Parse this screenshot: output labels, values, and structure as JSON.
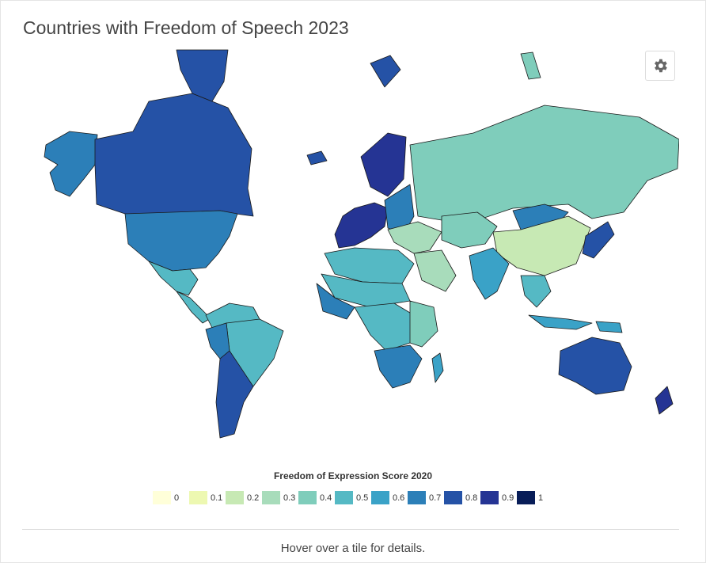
{
  "title": "Countries with Freedom of Speech 2023",
  "settings_icon": "gear-icon",
  "legend": {
    "title": "Freedom of Expression Score 2020",
    "items": [
      {
        "label": "0",
        "color": "#ffffd9"
      },
      {
        "label": "0.1",
        "color": "#edf8b1"
      },
      {
        "label": "0.2",
        "color": "#c7e9b4"
      },
      {
        "label": "0.3",
        "color": "#a8dcbb"
      },
      {
        "label": "0.4",
        "color": "#7fcdbb"
      },
      {
        "label": "0.5",
        "color": "#55b9c4"
      },
      {
        "label": "0.6",
        "color": "#3aa2c7"
      },
      {
        "label": "0.7",
        "color": "#2c7fb8"
      },
      {
        "label": "0.8",
        "color": "#2552a6"
      },
      {
        "label": "0.9",
        "color": "#253494"
      },
      {
        "label": "1",
        "color": "#081d58"
      }
    ]
  },
  "map_regions": [
    {
      "name": "Alaska",
      "score": 0.7
    },
    {
      "name": "Canada",
      "score": 0.8
    },
    {
      "name": "United States",
      "score": 0.7
    },
    {
      "name": "Mexico",
      "score": 0.5
    },
    {
      "name": "Central America",
      "score": 0.5
    },
    {
      "name": "South America North",
      "score": 0.5
    },
    {
      "name": "Brazil",
      "score": 0.5
    },
    {
      "name": "Peru",
      "score": 0.7
    },
    {
      "name": "Argentina",
      "score": 0.8
    },
    {
      "name": "Greenland",
      "score": 0.8
    },
    {
      "name": "Iceland",
      "score": 0.8
    },
    {
      "name": "Scandinavia",
      "score": 0.9
    },
    {
      "name": "Western Europe",
      "score": 0.9
    },
    {
      "name": "Eastern Europe",
      "score": 0.7
    },
    {
      "name": "Russia",
      "score": 0.4
    },
    {
      "name": "Middle East",
      "score": 0.3
    },
    {
      "name": "Arabian Peninsula",
      "score": 0.3
    },
    {
      "name": "North Africa",
      "score": 0.5
    },
    {
      "name": "Sahel",
      "score": 0.5
    },
    {
      "name": "West Africa",
      "score": 0.7
    },
    {
      "name": "Central Africa",
      "score": 0.5
    },
    {
      "name": "East Africa",
      "score": 0.4
    },
    {
      "name": "Southern Africa",
      "score": 0.7
    },
    {
      "name": "Madagascar",
      "score": 0.6
    },
    {
      "name": "Central Asia",
      "score": 0.4
    },
    {
      "name": "Mongolia",
      "score": 0.7
    },
    {
      "name": "China",
      "score": 0.2
    },
    {
      "name": "India",
      "score": 0.6
    },
    {
      "name": "Southeast Asia",
      "score": 0.5
    },
    {
      "name": "Japan",
      "score": 0.8
    },
    {
      "name": "Indonesia",
      "score": 0.6
    },
    {
      "name": "Papua New Guinea",
      "score": 0.6
    },
    {
      "name": "Australia",
      "score": 0.8
    },
    {
      "name": "New Zealand",
      "score": 0.9
    },
    {
      "name": "Svalbard",
      "score": 0.8
    },
    {
      "name": "Novaya Zemlya",
      "score": 0.4
    }
  ],
  "footer_text": "Hover over a tile for details."
}
